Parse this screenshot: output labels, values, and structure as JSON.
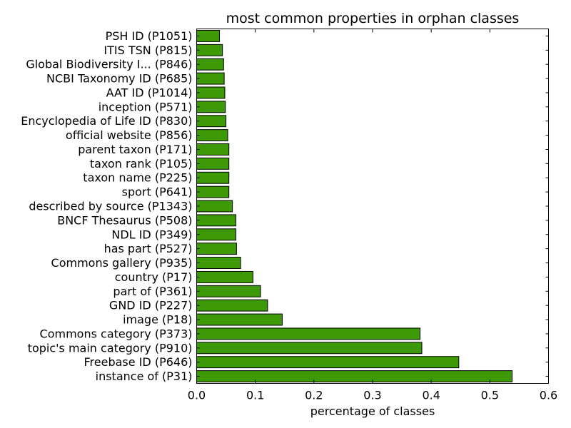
{
  "chart_data": {
    "type": "bar",
    "orientation": "horizontal",
    "title": "most common properties in orphan classes",
    "xlabel": "percentage of classes",
    "ylabel": "",
    "xlim": [
      0.0,
      0.6
    ],
    "xticks": [
      "0.0",
      "0.1",
      "0.2",
      "0.3",
      "0.4",
      "0.5",
      "0.6"
    ],
    "grid": false,
    "bar_color": "#3d9a06",
    "categories": [
      "instance of (P31)",
      "Freebase ID (P646)",
      "topic's main category (P910)",
      "Commons category (P373)",
      "image (P18)",
      "GND ID (P227)",
      "part of (P361)",
      "country (P17)",
      "Commons gallery (P935)",
      "has part (P527)",
      "NDL ID (P349)",
      "BNCF Thesaurus (P508)",
      "described by source (P1343)",
      "sport (P641)",
      "taxon name (P225)",
      "taxon rank (P105)",
      "parent taxon (P171)",
      "official website (P856)",
      "Encyclopedia of Life ID (P830)",
      "inception (P571)",
      "AAT ID (P1014)",
      "NCBI Taxonomy ID (P685)",
      "Global Biodiversity I... (P846)",
      "ITIS TSN (P815)",
      "PSH ID (P1051)"
    ],
    "values": [
      0.538,
      0.447,
      0.384,
      0.381,
      0.146,
      0.121,
      0.109,
      0.096,
      0.075,
      0.068,
      0.067,
      0.067,
      0.061,
      0.055,
      0.055,
      0.055,
      0.055,
      0.053,
      0.05,
      0.049,
      0.048,
      0.047,
      0.046,
      0.044,
      0.039
    ]
  }
}
